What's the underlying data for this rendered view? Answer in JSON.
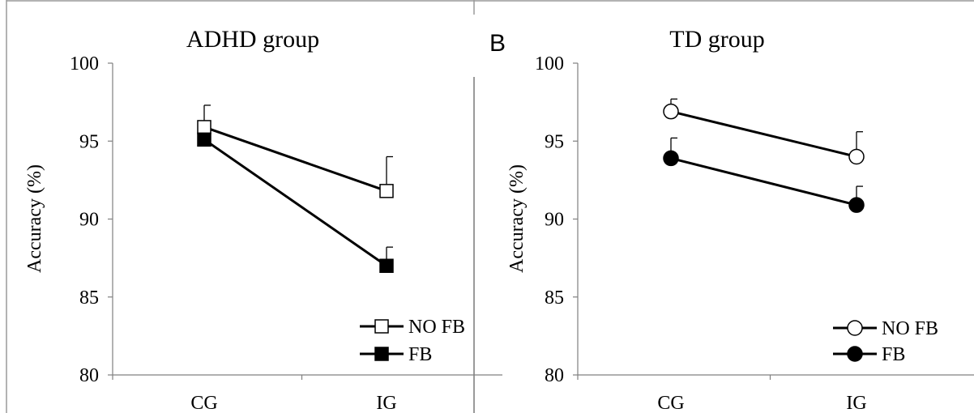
{
  "figure": {
    "panel_b_letter": "B"
  },
  "chart_data": [
    {
      "type": "line",
      "title": "ADHD group",
      "ylabel": "Accuracy (%)",
      "xlabel": "",
      "categories": [
        "CG",
        "IG"
      ],
      "ylim": [
        80,
        100
      ],
      "yticks": [
        80,
        85,
        90,
        95,
        100
      ],
      "grid": false,
      "legend": "bottom-right",
      "marker_shape": "square",
      "series": [
        {
          "name": "NO FB",
          "values": [
            95.9,
            91.8
          ],
          "error": [
            1.4,
            2.2
          ],
          "marker_fill": "#ffffff"
        },
        {
          "name": "FB",
          "values": [
            95.1,
            87.0
          ],
          "error": [
            0.0,
            1.2
          ],
          "marker_fill": "#000000"
        }
      ]
    },
    {
      "type": "line",
      "title": "TD group",
      "ylabel": "Accuracy (%)",
      "xlabel": "",
      "categories": [
        "CG",
        "IG"
      ],
      "ylim": [
        80,
        100
      ],
      "yticks": [
        80,
        85,
        90,
        95,
        100
      ],
      "grid": false,
      "legend": "bottom-right",
      "marker_shape": "circle",
      "series": [
        {
          "name": "NO FB",
          "values": [
            96.9,
            94.0
          ],
          "error": [
            0.8,
            1.6
          ],
          "marker_fill": "#ffffff"
        },
        {
          "name": "FB",
          "values": [
            93.9,
            90.9
          ],
          "error": [
            1.3,
            1.2
          ],
          "marker_fill": "#000000"
        }
      ]
    }
  ]
}
